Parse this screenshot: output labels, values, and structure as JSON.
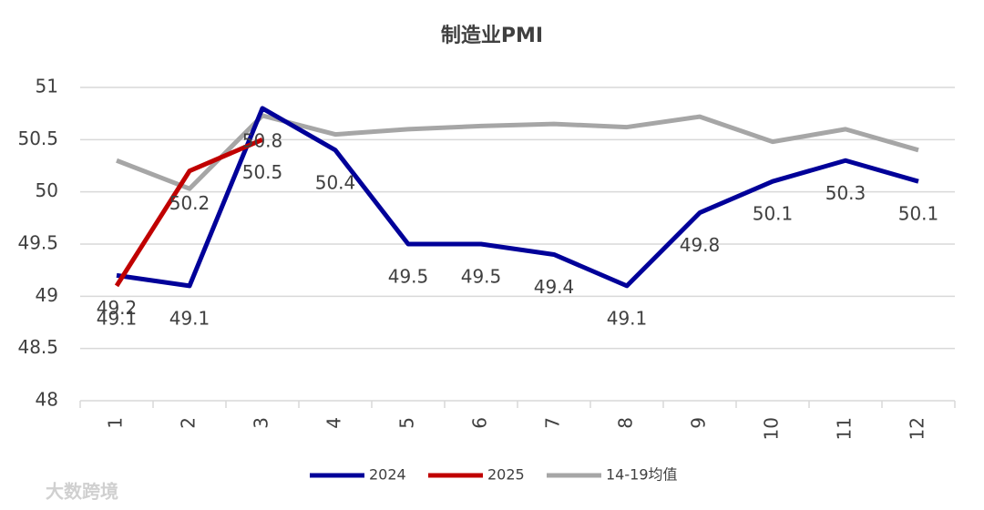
{
  "chart_data": {
    "type": "line",
    "title": "制造业PMI",
    "categories": [
      "1",
      "2",
      "3",
      "4",
      "5",
      "6",
      "7",
      "8",
      "9",
      "10",
      "11",
      "12"
    ],
    "series": [
      {
        "name": "2024",
        "color": "#000099",
        "labels": true,
        "values": [
          49.2,
          49.1,
          50.8,
          50.4,
          49.5,
          49.5,
          49.4,
          49.1,
          49.8,
          50.1,
          50.3,
          50.1
        ]
      },
      {
        "name": "2025",
        "color": "#c00000",
        "labels": true,
        "values": [
          49.1,
          50.2,
          50.5,
          null,
          null,
          null,
          null,
          null,
          null,
          null,
          null,
          null
        ]
      },
      {
        "name": "14-19均值",
        "color": "#a6a6a6",
        "labels": false,
        "values": [
          50.3,
          50.03,
          50.73,
          50.55,
          50.6,
          50.63,
          50.65,
          50.62,
          50.72,
          50.48,
          50.6,
          50.4
        ]
      }
    ],
    "ylim": [
      48,
      51
    ],
    "yticks": [
      48,
      48.5,
      49,
      49.5,
      50,
      50.5,
      51
    ],
    "grid": true,
    "legend": "bottom"
  },
  "watermark": "大数跨境"
}
